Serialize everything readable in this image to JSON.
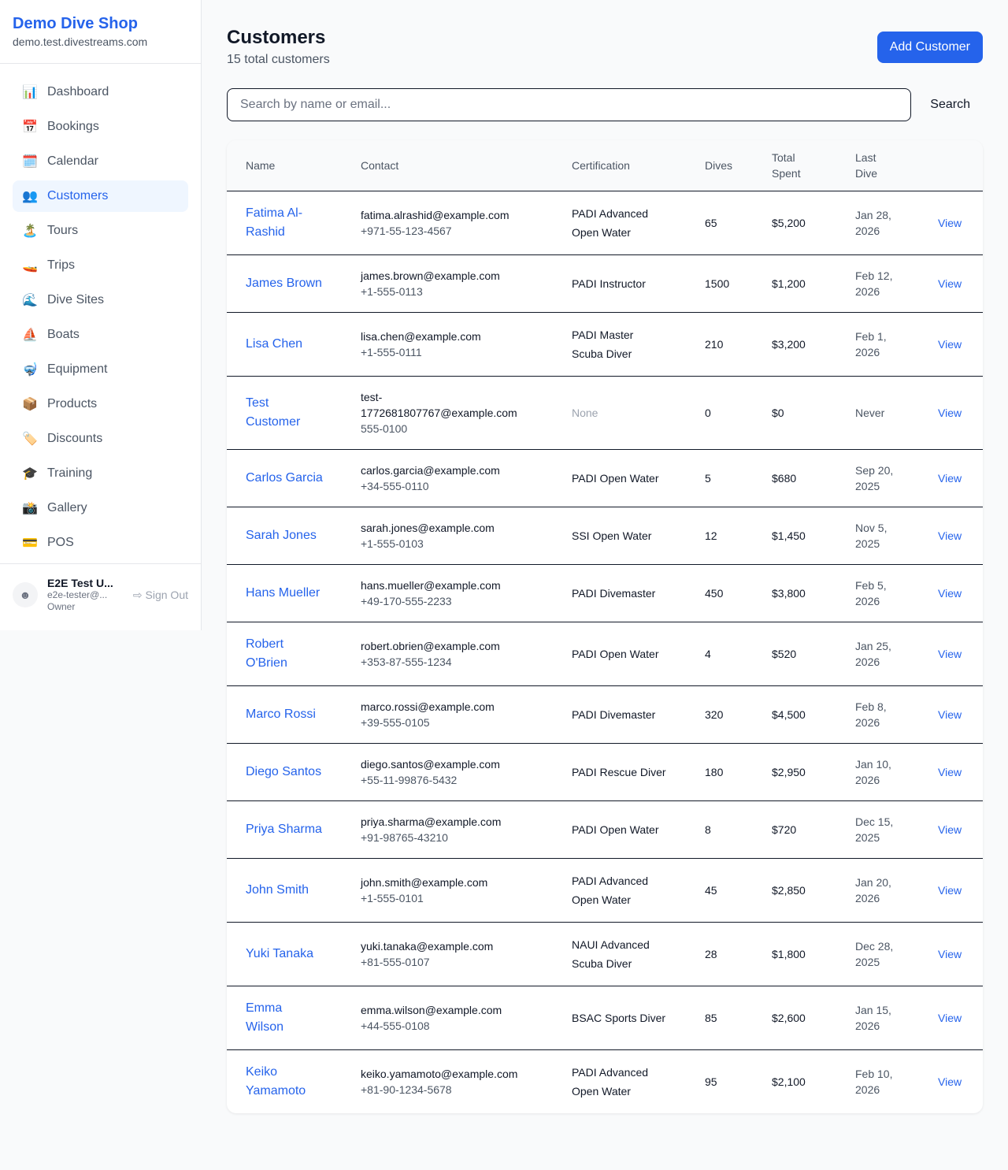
{
  "sidebar": {
    "brand": "Demo Dive Shop",
    "domain": "demo.test.divestreams.com",
    "items": [
      {
        "label": "Dashboard",
        "icon": "📊"
      },
      {
        "label": "Bookings",
        "icon": "📅"
      },
      {
        "label": "Calendar",
        "icon": "🗓️"
      },
      {
        "label": "Customers",
        "icon": "👥",
        "active": true
      },
      {
        "label": "Tours",
        "icon": "🏝️"
      },
      {
        "label": "Trips",
        "icon": "🚤"
      },
      {
        "label": "Dive Sites",
        "icon": "🌊"
      },
      {
        "label": "Boats",
        "icon": "⛵"
      },
      {
        "label": "Equipment",
        "icon": "🤿"
      },
      {
        "label": "Products",
        "icon": "📦"
      },
      {
        "label": "Discounts",
        "icon": "🏷️"
      },
      {
        "label": "Training",
        "icon": "🎓"
      },
      {
        "label": "Gallery",
        "icon": "📸"
      },
      {
        "label": "POS",
        "icon": "💳"
      }
    ],
    "user": {
      "name": "E2E Test U...",
      "email": "e2e-tester@...",
      "role": "Owner",
      "sign_out": "Sign Out"
    }
  },
  "header": {
    "title": "Customers",
    "subtitle": "15 total customers",
    "add_button": "Add Customer"
  },
  "search": {
    "placeholder": "Search by name or email...",
    "value": "",
    "button": "Search"
  },
  "table": {
    "columns": [
      "Name",
      "Contact",
      "Certification",
      "Dives",
      "Total Spent",
      "Last Dive",
      ""
    ],
    "rows": [
      {
        "name": "Fatima Al-Rashid",
        "email": "fatima.alrashid@example.com",
        "phone": "+971-55-123-4567",
        "cert": "PADI Advanced Open Water",
        "dives": "65",
        "spent": "$5,200",
        "last": "Jan 28, 2026",
        "action": "View"
      },
      {
        "name": "James Brown",
        "email": "james.brown@example.com",
        "phone": "+1-555-0113",
        "cert": "PADI Instructor",
        "dives": "1500",
        "spent": "$1,200",
        "last": "Feb 12, 2026",
        "action": "View"
      },
      {
        "name": "Lisa Chen",
        "email": "lisa.chen@example.com",
        "phone": "+1-555-0111",
        "cert": "PADI Master Scuba Diver",
        "dives": "210",
        "spent": "$3,200",
        "last": "Feb 1, 2026",
        "action": "View"
      },
      {
        "name": "Test Customer",
        "email": "test-1772681807767@example.com",
        "phone": "555-0100",
        "cert": "None",
        "dives": "0",
        "spent": "$0",
        "last": "Never",
        "action": "View"
      },
      {
        "name": "Carlos Garcia",
        "email": "carlos.garcia@example.com",
        "phone": "+34-555-0110",
        "cert": "PADI Open Water",
        "dives": "5",
        "spent": "$680",
        "last": "Sep 20, 2025",
        "action": "View"
      },
      {
        "name": "Sarah Jones",
        "email": "sarah.jones@example.com",
        "phone": "+1-555-0103",
        "cert": "SSI Open Water",
        "dives": "12",
        "spent": "$1,450",
        "last": "Nov 5, 2025",
        "action": "View"
      },
      {
        "name": "Hans Mueller",
        "email": "hans.mueller@example.com",
        "phone": "+49-170-555-2233",
        "cert": "PADI Divemaster",
        "dives": "450",
        "spent": "$3,800",
        "last": "Feb 5, 2026",
        "action": "View"
      },
      {
        "name": "Robert O'Brien",
        "email": "robert.obrien@example.com",
        "phone": "+353-87-555-1234",
        "cert": "PADI Open Water",
        "dives": "4",
        "spent": "$520",
        "last": "Jan 25, 2026",
        "action": "View"
      },
      {
        "name": "Marco Rossi",
        "email": "marco.rossi@example.com",
        "phone": "+39-555-0105",
        "cert": "PADI Divemaster",
        "dives": "320",
        "spent": "$4,500",
        "last": "Feb 8, 2026",
        "action": "View"
      },
      {
        "name": "Diego Santos",
        "email": "diego.santos@example.com",
        "phone": "+55-11-99876-5432",
        "cert": "PADI Rescue Diver",
        "dives": "180",
        "spent": "$2,950",
        "last": "Jan 10, 2026",
        "action": "View"
      },
      {
        "name": "Priya Sharma",
        "email": "priya.sharma@example.com",
        "phone": "+91-98765-43210",
        "cert": "PADI Open Water",
        "dives": "8",
        "spent": "$720",
        "last": "Dec 15, 2025",
        "action": "View"
      },
      {
        "name": "John Smith",
        "email": "john.smith@example.com",
        "phone": "+1-555-0101",
        "cert": "PADI Advanced Open Water",
        "dives": "45",
        "spent": "$2,850",
        "last": "Jan 20, 2026",
        "action": "View"
      },
      {
        "name": "Yuki Tanaka",
        "email": "yuki.tanaka@example.com",
        "phone": "+81-555-0107",
        "cert": "NAUI Advanced Scuba Diver",
        "dives": "28",
        "spent": "$1,800",
        "last": "Dec 28, 2025",
        "action": "View"
      },
      {
        "name": "Emma Wilson",
        "email": "emma.wilson@example.com",
        "phone": "+44-555-0108",
        "cert": "BSAC Sports Diver",
        "dives": "85",
        "spent": "$2,600",
        "last": "Jan 15, 2026",
        "action": "View"
      },
      {
        "name": "Keiko Yamamoto",
        "email": "keiko.yamamoto@example.com",
        "phone": "+81-90-1234-5678",
        "cert": "PADI Advanced Open Water",
        "dives": "95",
        "spent": "$2,100",
        "last": "Feb 10, 2026",
        "action": "View"
      }
    ]
  }
}
